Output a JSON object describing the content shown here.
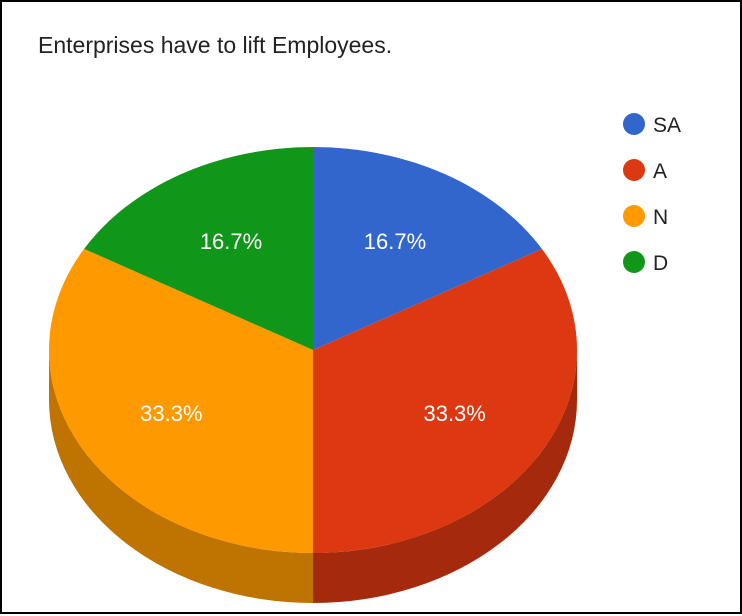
{
  "chart_data": {
    "type": "pie",
    "title": "Enterprises have to lift Employees.",
    "three_d": true,
    "legend_position": "right",
    "slices": [
      {
        "label": "SA",
        "value": 16.7,
        "color": "#3366cc",
        "side_color": "#264c99",
        "display": "16.7%"
      },
      {
        "label": "A",
        "value": 33.3,
        "color": "#dc3912",
        "side_color": "#a52a0d",
        "display": "33.3%"
      },
      {
        "label": "N",
        "value": 33.3,
        "color": "#ff9900",
        "side_color": "#bf7300",
        "display": "33.3%"
      },
      {
        "label": "D",
        "value": 16.7,
        "color": "#109618",
        "side_color": "#0c7012",
        "display": "16.7%"
      }
    ]
  }
}
